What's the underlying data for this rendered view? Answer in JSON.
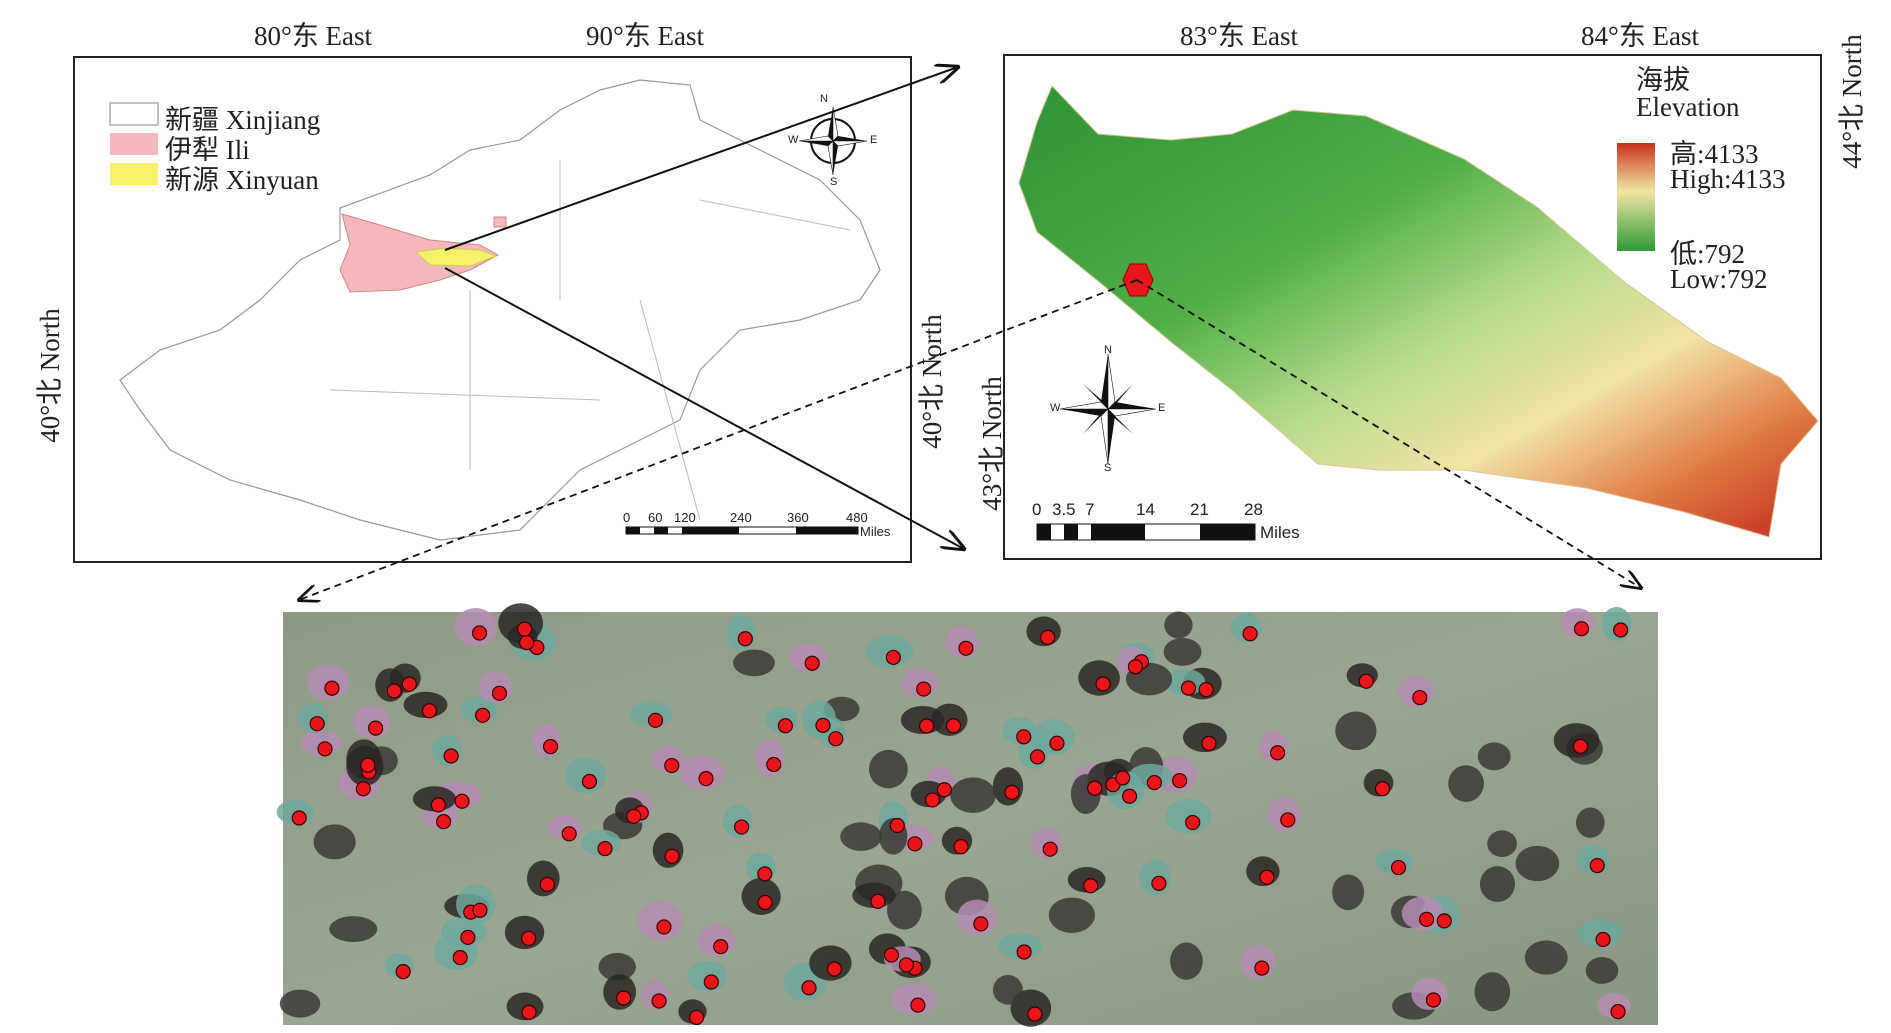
{
  "top_labels": {
    "lon80": "80°东 East",
    "lon90": "90°东 East",
    "lon83": "83°东 East",
    "lon84": "84°东 East"
  },
  "side_labels": {
    "left_lat40": "40°北 North",
    "mid_lat40": "40°北 North",
    "mid_lat43": "43°北 North",
    "right_lat44": "44°北 North"
  },
  "legend_left": {
    "items": [
      {
        "label": "新疆 Xinjiang",
        "color": "#ffffff"
      },
      {
        "label": "伊犁 Ili",
        "color": "#f4b8bc"
      },
      {
        "label": "新源 Xinyuan",
        "color": "#f6f06a"
      }
    ]
  },
  "legend_right": {
    "title_cn": "海拔",
    "title_en": "Elevation",
    "high_cn": "高:4133",
    "high_en": "High:4133",
    "low_cn": "低:792",
    "low_en": "Low:792",
    "colors": [
      "#c8321e",
      "#f0e6a0",
      "#2e9a3a"
    ]
  },
  "compass": {
    "n": "N",
    "s": "S",
    "e": "E",
    "w": "W"
  },
  "scalebar_left": {
    "ticks": [
      "0",
      "60",
      "120",
      "240",
      "360",
      "480"
    ],
    "unit": "Miles"
  },
  "scalebar_right": {
    "ticks": [
      "0",
      "3.5",
      "7",
      "14",
      "21",
      "28"
    ],
    "unit": "Miles"
  },
  "colors": {
    "point": "#e8151b",
    "ili": "#f4b8bc",
    "xinyuan": "#f6f06a"
  }
}
